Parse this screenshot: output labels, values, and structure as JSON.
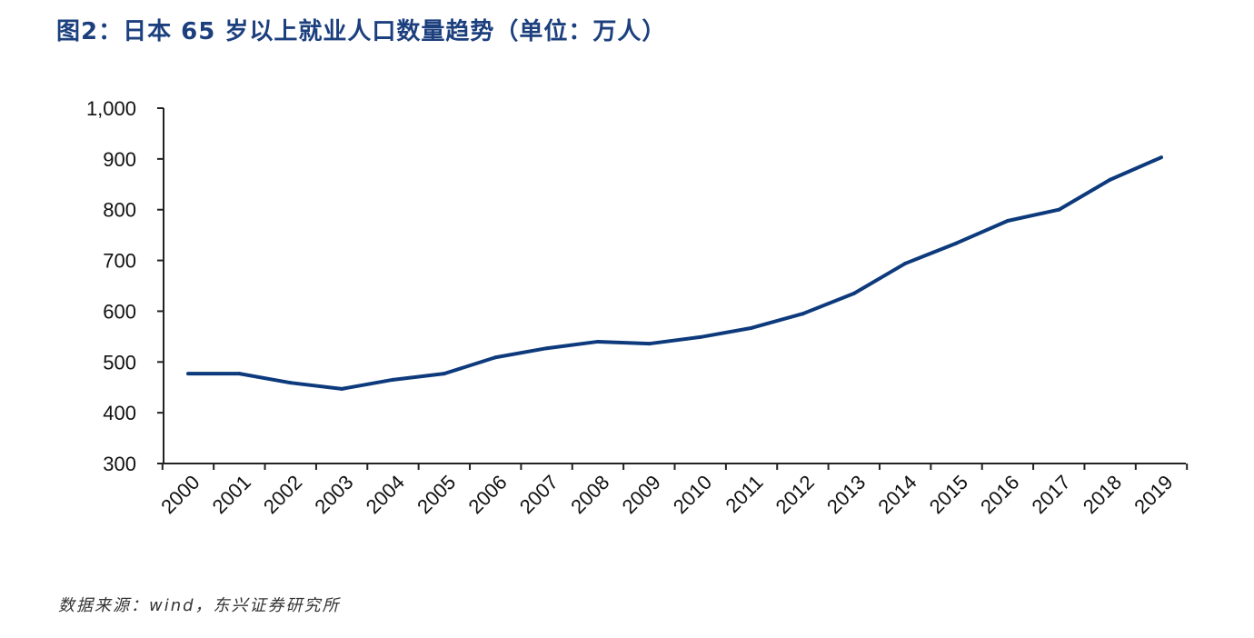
{
  "chart_data": {
    "type": "line",
    "title": "图2：日本 65 岁以上就业人口数量趋势（单位：万人）",
    "source": "数据来源：wind，东兴证券研究所",
    "xlabel": "",
    "ylabel": "",
    "ylim": [
      300,
      1000
    ],
    "yticks": [
      300,
      400,
      500,
      600,
      700,
      800,
      900,
      1000
    ],
    "ytick_labels": [
      "300",
      "400",
      "500",
      "600",
      "700",
      "800",
      "900",
      "1,000"
    ],
    "categories": [
      "2000",
      "2001",
      "2002",
      "2003",
      "2004",
      "2005",
      "2006",
      "2007",
      "2008",
      "2009",
      "2010",
      "2011",
      "2012",
      "2013",
      "2014",
      "2015",
      "2016",
      "2017",
      "2018",
      "2019"
    ],
    "series": [
      {
        "values": [
          477,
          477,
          459,
          447,
          465,
          477,
          509,
          527,
          540,
          536,
          549,
          567,
          595,
          635,
          694,
          734,
          778,
          800,
          859,
          903
        ],
        "color": "#0d3a7c"
      }
    ],
    "grid": false,
    "legend": "none"
  }
}
